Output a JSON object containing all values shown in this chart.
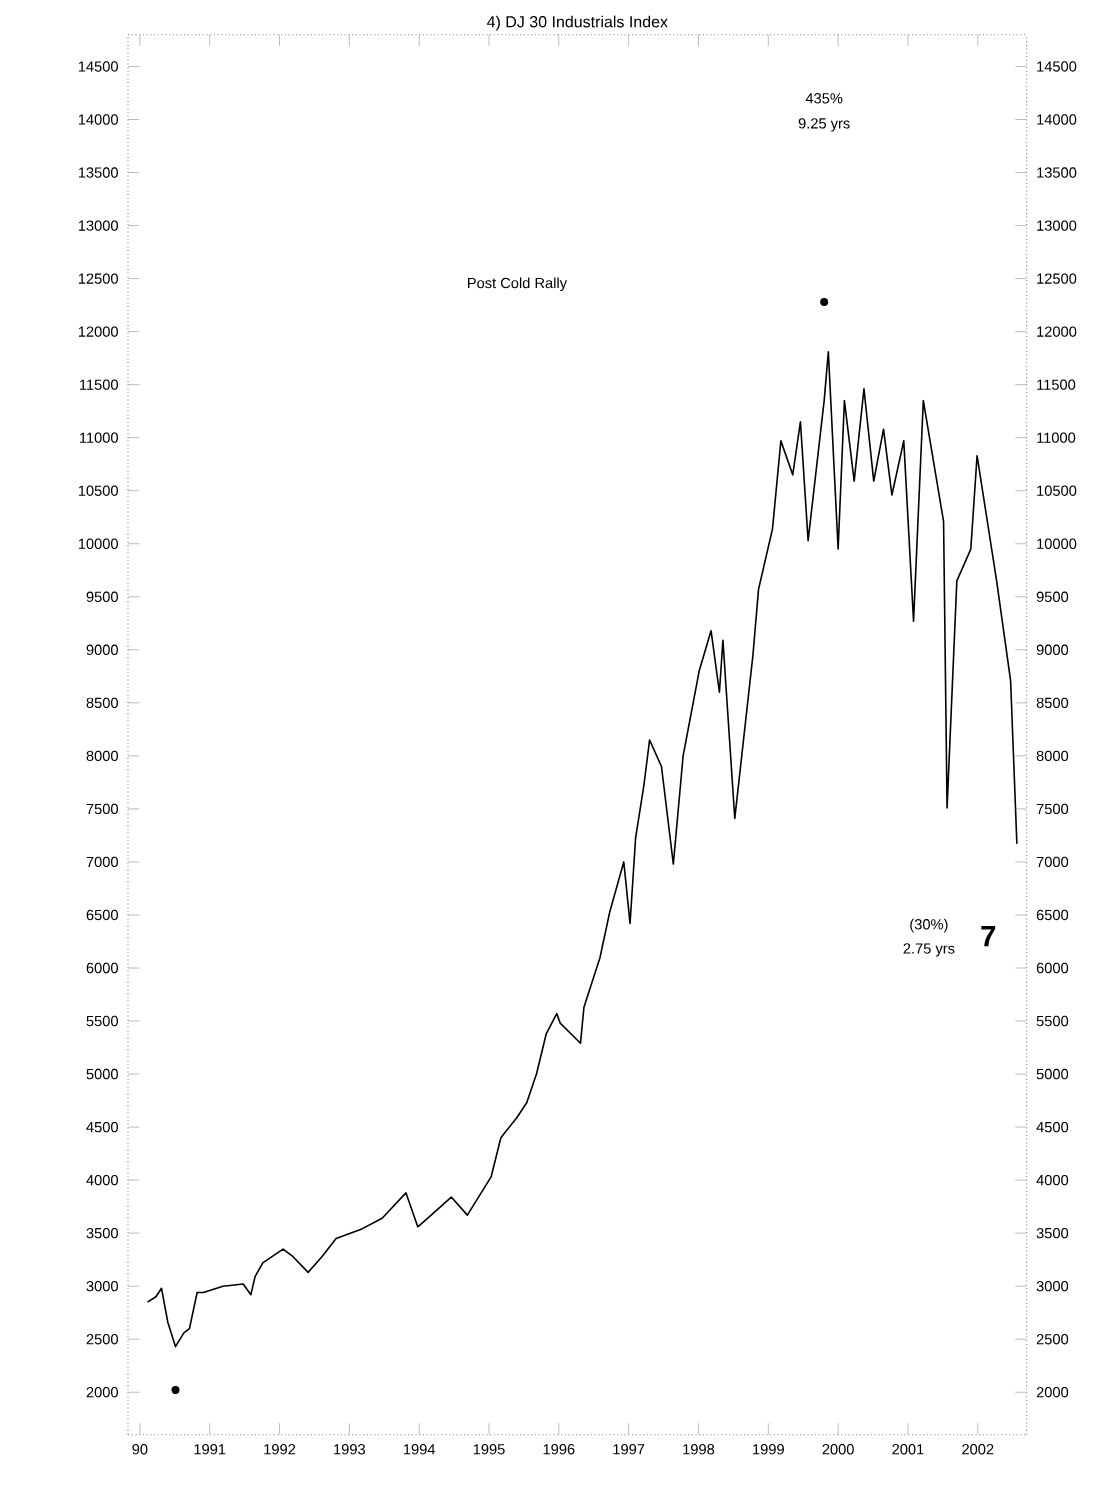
{
  "chart_data": {
    "type": "line",
    "title": "4) DJ 30 Industrials Index",
    "annotations": [
      "Post Cold Rally",
      "435%",
      "9.25 yrs",
      "(30%)",
      "2.75 yrs",
      "7"
    ],
    "xlim": [
      1989.83,
      2002.7
    ],
    "xticks": [
      {
        "value": 1990,
        "label": "90"
      },
      1991,
      1992,
      1993,
      1994,
      1995,
      1996,
      1997,
      1998,
      1999,
      2000,
      2001,
      2002
    ],
    "ylim": [
      1600,
      14800
    ],
    "yticks": [
      2000,
      2500,
      3000,
      3500,
      4000,
      4500,
      5000,
      5500,
      6000,
      6500,
      7000,
      7500,
      8000,
      8500,
      9000,
      9500,
      10000,
      10500,
      11000,
      11500,
      12000,
      12500,
      13000,
      13500,
      14000,
      14500
    ],
    "y2lim": [
      1600,
      14800
    ],
    "y2ticks": [
      2000,
      2500,
      3000,
      3500,
      4000,
      4500,
      5000,
      5500,
      6000,
      6500,
      7000,
      7500,
      8000,
      8500,
      9000,
      9500,
      10000,
      10500,
      11000,
      11500,
      12000,
      12500,
      13000,
      13500,
      14000,
      14500
    ],
    "series": [
      {
        "color": "#000000",
        "marker": "none",
        "x": [
          1990.11,
          1990.23,
          1990.31,
          1990.4,
          1990.51,
          1990.63,
          1990.71,
          1990.82,
          1990.91,
          1991.19,
          1991.48,
          1991.59,
          1991.65,
          1991.76,
          1992.05,
          1992.19,
          1992.41,
          1992.61,
          1992.81,
          1993.18,
          1993.47,
          1993.81,
          1993.98,
          1994.12,
          1994.46,
          1994.69,
          1995.03,
          1995.17,
          1995.4,
          1995.54,
          1995.68,
          1995.82,
          1995.97,
          1996.02,
          1996.31,
          1996.36,
          1996.59,
          1996.73,
          1996.93,
          1997.02,
          1997.1,
          1997.22,
          1997.3,
          1997.47,
          1997.64,
          1997.78,
          1998.01,
          1998.18,
          1998.3,
          1998.35,
          1998.52,
          1998.78,
          1998.86,
          1999.06,
          1999.18,
          1999.35,
          1999.46,
          1999.57,
          1999.8,
          1999.86,
          2000.0,
          2000.09,
          2000.23,
          2000.37,
          2000.51,
          2000.65,
          2000.77,
          2000.94,
          2001.08,
          2001.22,
          2001.51,
          2001.56,
          2001.7,
          2001.9,
          2001.99,
          2002.27,
          2002.47,
          2002.56
        ],
        "values": [
          2850,
          2900,
          2980,
          2660,
          2430,
          2560,
          2600,
          2940,
          2940,
          3000,
          3020,
          2920,
          3090,
          3220,
          3350,
          3280,
          3130,
          3280,
          3450,
          3540,
          3640,
          3880,
          3560,
          3640,
          3840,
          3670,
          4030,
          4400,
          4590,
          4730,
          5000,
          5380,
          5570,
          5480,
          5290,
          5630,
          6100,
          6530,
          7000,
          6420,
          7230,
          7730,
          8150,
          7900,
          6980,
          8000,
          8800,
          9180,
          8600,
          9090,
          7410,
          8950,
          9570,
          10140,
          10970,
          10650,
          11150,
          10030,
          11350,
          11810,
          9950,
          11350,
          10590,
          11460,
          10590,
          11080,
          10460,
          10970,
          9270,
          11350,
          10210,
          7510,
          9650,
          9950,
          10830,
          9650,
          8710,
          7170
        ]
      },
      {
        "type": "scatter",
        "color": "#000000",
        "marker": "circle",
        "x": [
          1990.51,
          1999.8
        ],
        "values": [
          2020,
          12280
        ]
      }
    ]
  }
}
